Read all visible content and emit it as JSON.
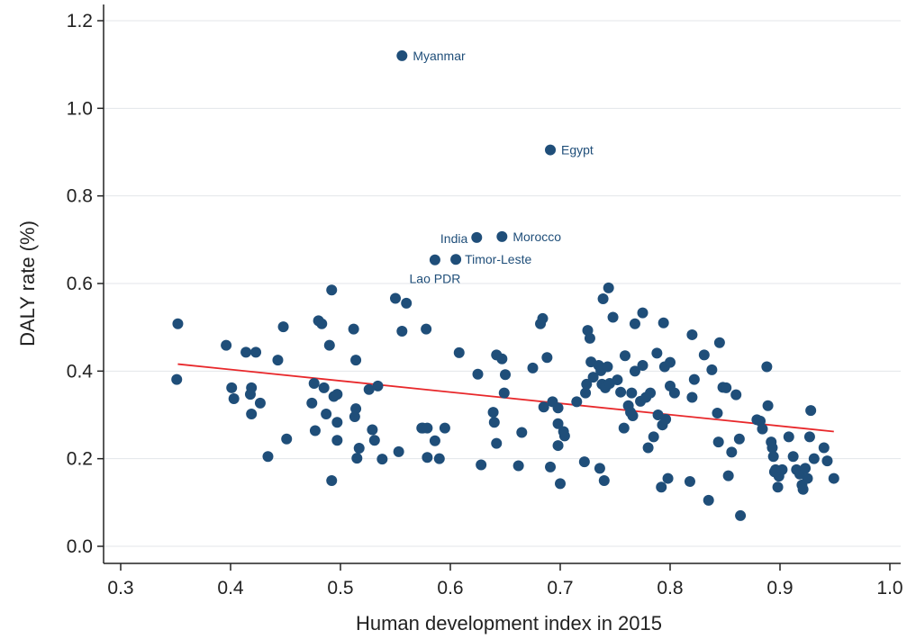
{
  "chart_data": {
    "type": "scatter",
    "xlabel": "Human development index in 2015",
    "ylabel": "DALY rate (%)",
    "xlim": [
      0.3,
      1.0
    ],
    "ylim": [
      0.0,
      1.2
    ],
    "x_ticks": [
      "0.3",
      "0.4",
      "0.5",
      "0.6",
      "0.7",
      "0.8",
      "0.9",
      "1.0"
    ],
    "y_ticks": [
      "0.0",
      "0.2",
      "0.4",
      "0.6",
      "0.8",
      "1.0",
      "1.2"
    ],
    "grid": true,
    "marker_color": "#1f4e79",
    "trend_color": "#e8282b",
    "trend_line": {
      "x": [
        0.352,
        0.949
      ],
      "y": [
        0.416,
        0.262
      ]
    },
    "labeled_points": [
      {
        "label": "Myanmar",
        "x": 0.556,
        "y": 1.12
      },
      {
        "label": "Egypt",
        "x": 0.691,
        "y": 0.905
      },
      {
        "label": "India",
        "x": 0.624,
        "y": 0.705
      },
      {
        "label": "Morocco",
        "x": 0.647,
        "y": 0.707
      },
      {
        "label": "Timor-Leste",
        "x": 0.605,
        "y": 0.655
      },
      {
        "label": "Lao PDR",
        "x": 0.586,
        "y": 0.654
      }
    ],
    "points": [
      [
        0.352,
        0.508
      ],
      [
        0.351,
        0.381
      ],
      [
        0.396,
        0.459
      ],
      [
        0.401,
        0.362
      ],
      [
        0.403,
        0.337
      ],
      [
        0.414,
        0.443
      ],
      [
        0.418,
        0.347
      ],
      [
        0.419,
        0.362
      ],
      [
        0.419,
        0.302
      ],
      [
        0.423,
        0.443
      ],
      [
        0.427,
        0.327
      ],
      [
        0.434,
        0.205
      ],
      [
        0.443,
        0.425
      ],
      [
        0.448,
        0.501
      ],
      [
        0.451,
        0.245
      ],
      [
        0.474,
        0.327
      ],
      [
        0.476,
        0.372
      ],
      [
        0.477,
        0.264
      ],
      [
        0.48,
        0.515
      ],
      [
        0.483,
        0.508
      ],
      [
        0.485,
        0.362
      ],
      [
        0.487,
        0.302
      ],
      [
        0.49,
        0.459
      ],
      [
        0.492,
        0.585
      ],
      [
        0.492,
        0.15
      ],
      [
        0.494,
        0.342
      ],
      [
        0.497,
        0.347
      ],
      [
        0.497,
        0.283
      ],
      [
        0.497,
        0.242
      ],
      [
        0.512,
        0.496
      ],
      [
        0.513,
        0.296
      ],
      [
        0.514,
        0.314
      ],
      [
        0.514,
        0.425
      ],
      [
        0.515,
        0.201
      ],
      [
        0.517,
        0.224
      ],
      [
        0.526,
        0.358
      ],
      [
        0.529,
        0.266
      ],
      [
        0.531,
        0.242
      ],
      [
        0.534,
        0.366
      ],
      [
        0.538,
        0.199
      ],
      [
        0.55,
        0.566
      ],
      [
        0.553,
        0.216
      ],
      [
        0.556,
        0.491
      ],
      [
        0.56,
        0.555
      ],
      [
        0.574,
        0.27
      ],
      [
        0.575,
        0.27
      ],
      [
        0.578,
        0.496
      ],
      [
        0.579,
        0.27
      ],
      [
        0.579,
        0.203
      ],
      [
        0.586,
        0.241
      ],
      [
        0.59,
        0.2
      ],
      [
        0.595,
        0.27
      ],
      [
        0.608,
        0.442
      ],
      [
        0.625,
        0.393
      ],
      [
        0.628,
        0.186
      ],
      [
        0.639,
        0.306
      ],
      [
        0.64,
        0.283
      ],
      [
        0.642,
        0.437
      ],
      [
        0.642,
        0.235
      ],
      [
        0.647,
        0.428
      ],
      [
        0.649,
        0.35
      ],
      [
        0.65,
        0.392
      ],
      [
        0.662,
        0.184
      ],
      [
        0.665,
        0.26
      ],
      [
        0.675,
        0.407
      ],
      [
        0.682,
        0.508
      ],
      [
        0.684,
        0.52
      ],
      [
        0.685,
        0.318
      ],
      [
        0.688,
        0.431
      ],
      [
        0.691,
        0.181
      ],
      [
        0.693,
        0.33
      ],
      [
        0.698,
        0.316
      ],
      [
        0.698,
        0.28
      ],
      [
        0.698,
        0.23
      ],
      [
        0.7,
        0.143
      ],
      [
        0.703,
        0.262
      ],
      [
        0.704,
        0.252
      ],
      [
        0.715,
        0.33
      ],
      [
        0.722,
        0.193
      ],
      [
        0.723,
        0.35
      ],
      [
        0.724,
        0.37
      ],
      [
        0.725,
        0.493
      ],
      [
        0.727,
        0.475
      ],
      [
        0.728,
        0.421
      ],
      [
        0.73,
        0.386
      ],
      [
        0.735,
        0.413
      ],
      [
        0.736,
        0.178
      ],
      [
        0.737,
        0.401
      ],
      [
        0.738,
        0.37
      ],
      [
        0.739,
        0.565
      ],
      [
        0.74,
        0.15
      ],
      [
        0.741,
        0.362
      ],
      [
        0.743,
        0.41
      ],
      [
        0.744,
        0.59
      ],
      [
        0.745,
        0.372
      ],
      [
        0.748,
        0.523
      ],
      [
        0.752,
        0.38
      ],
      [
        0.755,
        0.352
      ],
      [
        0.758,
        0.27
      ],
      [
        0.759,
        0.435
      ],
      [
        0.762,
        0.321
      ],
      [
        0.764,
        0.306
      ],
      [
        0.765,
        0.35
      ],
      [
        0.766,
        0.298
      ],
      [
        0.768,
        0.4
      ],
      [
        0.768,
        0.508
      ],
      [
        0.773,
        0.331
      ],
      [
        0.775,
        0.413
      ],
      [
        0.775,
        0.533
      ],
      [
        0.778,
        0.34
      ],
      [
        0.78,
        0.225
      ],
      [
        0.782,
        0.35
      ],
      [
        0.785,
        0.25
      ],
      [
        0.788,
        0.441
      ],
      [
        0.789,
        0.3
      ],
      [
        0.792,
        0.135
      ],
      [
        0.793,
        0.277
      ],
      [
        0.794,
        0.51
      ],
      [
        0.795,
        0.41
      ],
      [
        0.796,
        0.29
      ],
      [
        0.798,
        0.155
      ],
      [
        0.8,
        0.42
      ],
      [
        0.8,
        0.366
      ],
      [
        0.804,
        0.35
      ],
      [
        0.818,
        0.148
      ],
      [
        0.82,
        0.483
      ],
      [
        0.82,
        0.34
      ],
      [
        0.822,
        0.381
      ],
      [
        0.831,
        0.437
      ],
      [
        0.835,
        0.105
      ],
      [
        0.838,
        0.403
      ],
      [
        0.843,
        0.304
      ],
      [
        0.844,
        0.238
      ],
      [
        0.845,
        0.465
      ],
      [
        0.848,
        0.363
      ],
      [
        0.851,
        0.362
      ],
      [
        0.853,
        0.161
      ],
      [
        0.856,
        0.215
      ],
      [
        0.86,
        0.346
      ],
      [
        0.863,
        0.245
      ],
      [
        0.864,
        0.07
      ],
      [
        0.879,
        0.289
      ],
      [
        0.882,
        0.286
      ],
      [
        0.884,
        0.268
      ],
      [
        0.888,
        0.41
      ],
      [
        0.889,
        0.321
      ],
      [
        0.892,
        0.238
      ],
      [
        0.893,
        0.225
      ],
      [
        0.894,
        0.205
      ],
      [
        0.895,
        0.17
      ],
      [
        0.896,
        0.175
      ],
      [
        0.898,
        0.135
      ],
      [
        0.899,
        0.16
      ],
      [
        0.902,
        0.175
      ],
      [
        0.908,
        0.25
      ],
      [
        0.912,
        0.205
      ],
      [
        0.915,
        0.175
      ],
      [
        0.918,
        0.165
      ],
      [
        0.92,
        0.14
      ],
      [
        0.921,
        0.13
      ],
      [
        0.923,
        0.178
      ],
      [
        0.925,
        0.155
      ],
      [
        0.927,
        0.25
      ],
      [
        0.928,
        0.31
      ],
      [
        0.931,
        0.2
      ],
      [
        0.94,
        0.225
      ],
      [
        0.943,
        0.195
      ],
      [
        0.949,
        0.155
      ]
    ]
  }
}
